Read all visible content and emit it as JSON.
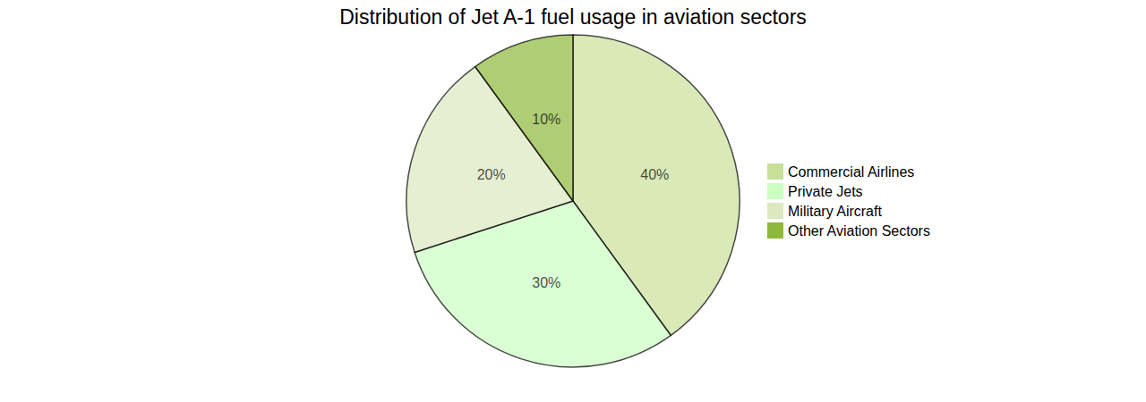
{
  "chart_data": {
    "type": "pie",
    "title": "Distribution of Jet A-1 fuel usage in aviation sectors",
    "categories": [
      "Commercial Airlines",
      "Private Jets",
      "Military Aircraft",
      "Other Aviation Sectors"
    ],
    "values": [
      40,
      30,
      20,
      10
    ],
    "value_labels": [
      "40%",
      "30%",
      "20%",
      "10%"
    ],
    "colors": [
      "#c9e09a",
      "#ccffc2",
      "#dde8c0",
      "#8db83a"
    ],
    "legend": "right",
    "data_labels": true
  }
}
